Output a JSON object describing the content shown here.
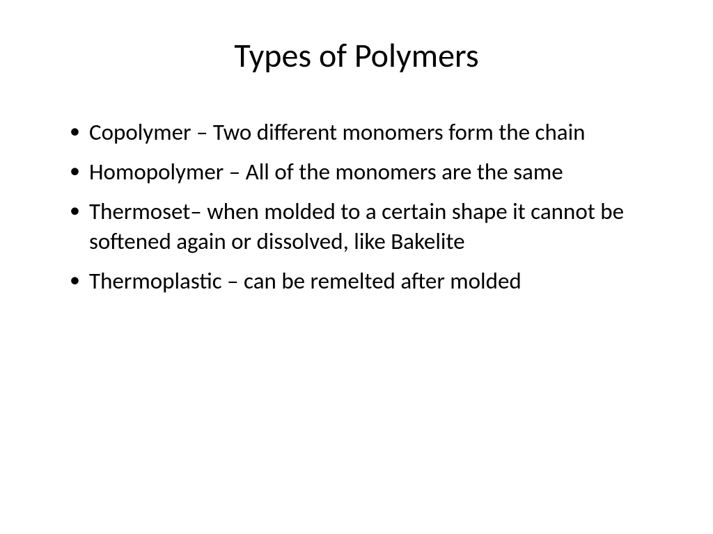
{
  "slide": {
    "title": "Types of Polymers",
    "title_fontsize": 48,
    "title_color": "#000000",
    "background_color": "#ffffff",
    "bullets": [
      "Copolymer – Two different monomers form the chain",
      "Homopolymer – All of the monomers are the same",
      "Thermoset– when molded to a certain shape it cannot be softened again or dissolved, like Bakelite",
      "Thermoplastic – can be remelted after molded"
    ],
    "bullet_fontsize": 33,
    "bullet_color": "#000000",
    "font_family": "Calibri"
  }
}
